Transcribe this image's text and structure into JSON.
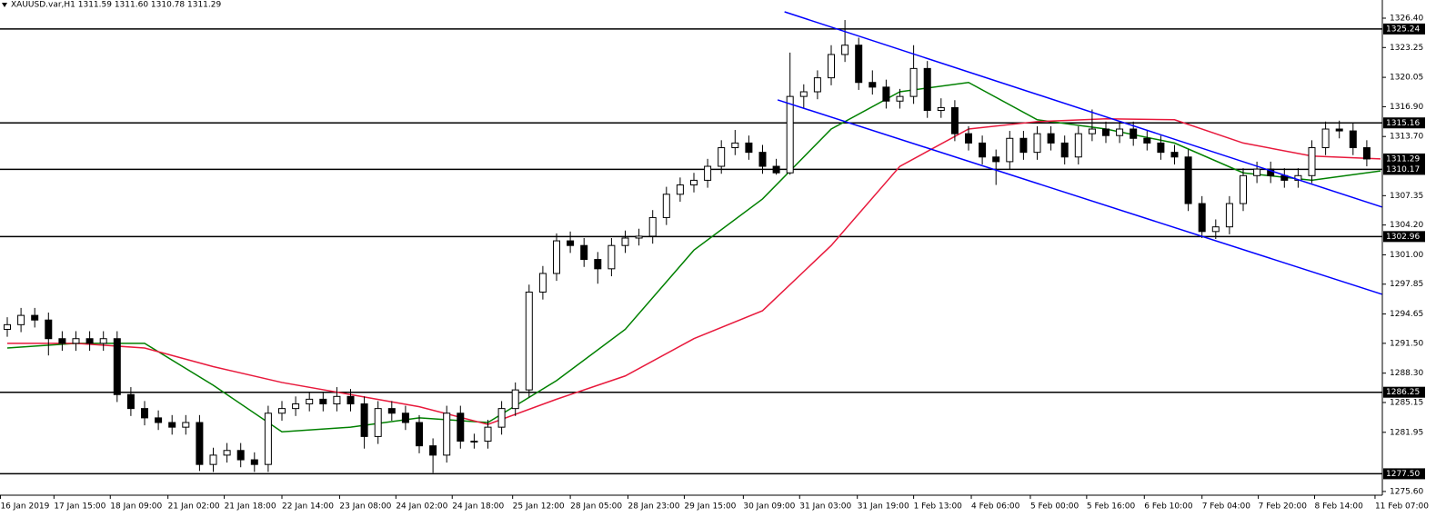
{
  "chart_data": {
    "type": "candlestick",
    "title": "XAUUSD.var,H1  1311.59 1311.60 1310.78 1311.29",
    "open": [
      1293,
      1293.5,
      1294.5,
      1294,
      1292,
      1291.5,
      1292,
      1291.5,
      1292,
      1286,
      1284.5,
      1283.5,
      1283,
      1282.5,
      1283,
      1278.5,
      1279.5,
      1280,
      1279,
      1278.5,
      1284,
      1284.5,
      1285,
      1285.5,
      1285,
      1285.8,
      1285,
      1281.5,
      1284.5,
      1284,
      1283,
      1280.5,
      1279.5,
      1284,
      1281,
      1281,
      1282.5,
      1284.5,
      1286.5,
      1297,
      1299,
      1302.5,
      1302,
      1300.5,
      1299.5,
      1302,
      1302.8,
      1303,
      1305,
      1307.5,
      1308.5,
      1309,
      1310.5,
      1312.5,
      1313,
      1312,
      1310.5,
      1309.8,
      1318,
      1318.5,
      1320,
      1322.5,
      1323.5,
      1319.5,
      1319,
      1317.5,
      1318,
      1321,
      1316.5,
      1316.8,
      1314,
      1313,
      1311.5,
      1311,
      1313.5,
      1312,
      1314,
      1313,
      1311.5,
      1314,
      1314.5,
      1313.8,
      1314.5,
      1313.5,
      1313,
      1312,
      1311.5,
      1306.5,
      1303.5,
      1304,
      1306.5,
      1309.5,
      1310.2,
      1309.5,
      1309,
      1309.5,
      1312.5,
      1314.5,
      1314.3,
      1312.5
    ],
    "high": [
      1294.3,
      1295.3,
      1295.3,
      1294.8,
      1292.8,
      1292.8,
      1292.8,
      1292.8,
      1292.8,
      1286.8,
      1285.3,
      1284.3,
      1283.8,
      1283.8,
      1283.8,
      1280.3,
      1280.8,
      1280.8,
      1279.8,
      1284.8,
      1285.3,
      1285.8,
      1286.3,
      1286.3,
      1286.8,
      1286.6,
      1285.8,
      1285.3,
      1285.3,
      1284.8,
      1283.8,
      1281.3,
      1284.8,
      1284.8,
      1281.8,
      1283.3,
      1285.3,
      1287.3,
      1297.8,
      1299.8,
      1303.3,
      1303.5,
      1302.8,
      1301.3,
      1302.8,
      1303.6,
      1303.8,
      1305.8,
      1308.3,
      1309.3,
      1309.8,
      1311.3,
      1313.3,
      1314.4,
      1313.8,
      1312.8,
      1311.3,
      1322.7,
      1319.3,
      1320.8,
      1323.5,
      1326.2,
      1324.3,
      1320.8,
      1319.8,
      1318.8,
      1323.5,
      1321.8,
      1317.8,
      1317.6,
      1314.8,
      1313.8,
      1312.3,
      1314.3,
      1314.3,
      1314.8,
      1314.8,
      1313.8,
      1314.8,
      1316.6,
      1315.3,
      1315.3,
      1315.3,
      1314.3,
      1313.8,
      1312.8,
      1312.3,
      1307.3,
      1304.8,
      1307.3,
      1310.3,
      1311,
      1311,
      1310.3,
      1310.3,
      1313.3,
      1315.3,
      1315.4,
      1315.1,
      1313.3
    ],
    "low": [
      1292.2,
      1292.7,
      1293.2,
      1290.2,
      1290.7,
      1290.7,
      1290.7,
      1290.7,
      1285.2,
      1283.7,
      1282.7,
      1282.2,
      1281.7,
      1281.7,
      1277.8,
      1277.7,
      1278.7,
      1278.2,
      1277.7,
      1277.7,
      1283.2,
      1283.7,
      1284.2,
      1284.2,
      1284.2,
      1284.2,
      1280.2,
      1280.7,
      1283.2,
      1282.2,
      1279.7,
      1277.6,
      1278.7,
      1280.2,
      1280.2,
      1280.2,
      1281.7,
      1283.7,
      1285.7,
      1296.2,
      1298.2,
      1301.2,
      1299.7,
      1297.9,
      1298.7,
      1301.2,
      1302,
      1302.2,
      1304.2,
      1306.7,
      1307.7,
      1308.2,
      1309.7,
      1311.7,
      1311.2,
      1309.7,
      1309.6,
      1309.6,
      1316.7,
      1317.7,
      1319.2,
      1321.7,
      1318.7,
      1318.2,
      1316.7,
      1316.7,
      1317.2,
      1315.7,
      1315.7,
      1313.2,
      1312.2,
      1310.7,
      1308.5,
      1310.2,
      1311.2,
      1311.2,
      1312.2,
      1310.7,
      1310.7,
      1313.2,
      1313,
      1313,
      1312.7,
      1312.2,
      1311.2,
      1310.7,
      1305.7,
      1302.8,
      1302.7,
      1303.2,
      1305.7,
      1308.7,
      1308.7,
      1308.2,
      1308.2,
      1308.7,
      1311.7,
      1313.5,
      1311.7,
      1310.5
    ],
    "close": [
      1293.5,
      1294.5,
      1294,
      1292,
      1291.5,
      1292,
      1291.5,
      1292,
      1286,
      1284.5,
      1283.5,
      1283,
      1282.5,
      1283,
      1278.5,
      1279.5,
      1280,
      1279,
      1278.5,
      1284,
      1284.5,
      1285,
      1285.5,
      1285,
      1285.8,
      1285,
      1281.5,
      1284.5,
      1284,
      1283,
      1280.5,
      1279.5,
      1284,
      1281,
      1281,
      1282.5,
      1284.5,
      1286.5,
      1297,
      1299,
      1302.5,
      1302,
      1300.5,
      1299.5,
      1302,
      1302.8,
      1303,
      1305,
      1307.5,
      1308.5,
      1309,
      1310.5,
      1312.5,
      1313,
      1312,
      1310.5,
      1309.8,
      1318,
      1318.5,
      1320,
      1322.5,
      1323.5,
      1319.5,
      1319,
      1317.5,
      1318,
      1321,
      1316.5,
      1316.8,
      1314,
      1313,
      1311.5,
      1311,
      1313.5,
      1312,
      1314,
      1313,
      1311.5,
      1314,
      1314.5,
      1313.8,
      1314.5,
      1313.5,
      1313,
      1312,
      1311.5,
      1306.5,
      1303.5,
      1304,
      1306.5,
      1309.5,
      1310.2,
      1309.5,
      1309,
      1309.5,
      1312.5,
      1314.5,
      1314.3,
      1312.5,
      1311.29
    ],
    "color_up": "#ffffff",
    "color_down": "#000000",
    "ylim": [
      1275.2,
      1328.35
    ],
    "yticks": [
      {
        "value": 1326.4,
        "label": "1326.40"
      },
      1323.25,
      1320.05,
      {
        "value": 1316.9,
        "label": "1316.90"
      },
      {
        "value": 1313.7,
        "label": "1313.70"
      },
      1307.35,
      {
        "value": 1304.2,
        "label": "1304.20"
      },
      {
        "value": 1301,
        "label": "1301.00"
      },
      1297.85,
      1294.65,
      {
        "value": 1291.5,
        "label": "1291.50"
      },
      {
        "value": 1288.3,
        "label": "1288.30"
      },
      1285.15,
      1281.95,
      {
        "value": 1275.6,
        "label": "1275.60"
      }
    ],
    "xticks": [
      {
        "value": -0.5,
        "label": "16 Jan 2019"
      },
      {
        "value": 3.4,
        "label": "17 Jan 15:00"
      },
      {
        "value": 7.5,
        "label": "18 Jan 09:00"
      },
      {
        "value": 11.7,
        "label": "21 Jan 02:00"
      },
      {
        "value": 15.8,
        "label": "21 Jan 18:00"
      },
      {
        "value": 20,
        "label": "22 Jan 14:00"
      },
      {
        "value": 24.2,
        "label": "23 Jan 08:00"
      },
      {
        "value": 28.3,
        "label": "24 Jan 02:00"
      },
      {
        "value": 32.4,
        "label": "24 Jan 18:00"
      },
      {
        "value": 36.8,
        "label": "25 Jan 12:00"
      },
      {
        "value": 41,
        "label": "28 Jan 05:00"
      },
      {
        "value": 45.2,
        "label": "28 Jan 23:00"
      },
      {
        "value": 49.3,
        "label": "29 Jan 15:00"
      },
      {
        "value": 53.6,
        "label": "30 Jan 09:00"
      },
      {
        "value": 57.7,
        "label": "31 Jan 03:00"
      },
      {
        "value": 61.9,
        "label": "31 Jan 19:00"
      },
      {
        "value": 66,
        "label": "1 Feb 13:00"
      },
      {
        "value": 70.2,
        "label": "4 Feb 06:00"
      },
      {
        "value": 74.5,
        "label": "5 Feb 00:00"
      },
      {
        "value": 78.6,
        "label": "5 Feb 16:00"
      },
      {
        "value": 82.8,
        "label": "6 Feb 10:00"
      },
      {
        "value": 87,
        "label": "7 Feb 04:00"
      },
      {
        "value": 91.1,
        "label": "7 Feb 20:00"
      },
      {
        "value": 95.2,
        "label": "8 Feb 14:00"
      },
      {
        "value": 99.6,
        "label": "11 Feb 07:00"
      }
    ],
    "levels": [
      1325.24,
      1315.16,
      1310.17,
      1302.96,
      1286.25,
      {
        "value": 1277.5,
        "label": "1277.50"
      }
    ],
    "level_color": "#000000",
    "last_price": 1311.29,
    "lines": [
      {
        "color": "#008000",
        "x": [
          0,
          5,
          10,
          15,
          20,
          25,
          30,
          35,
          40,
          45,
          50,
          55,
          60,
          65,
          70,
          75,
          80,
          85,
          90,
          95,
          100
        ],
        "values": [
          1291,
          1291.5,
          1291.5,
          1287,
          1282,
          1282.5,
          1283.5,
          1283,
          1287.5,
          1293,
          1301.5,
          1307,
          1314.5,
          1318.5,
          1319.5,
          1315.5,
          1314.5,
          1313,
          1309.8,
          1309,
          1310
        ]
      },
      {
        "color": "#e8193c",
        "x": [
          0,
          5,
          10,
          15,
          20,
          25,
          30,
          35,
          40,
          45,
          50,
          55,
          60,
          65,
          70,
          75,
          80,
          85,
          90,
          95,
          100
        ],
        "values": [
          1291.5,
          1291.5,
          1291,
          1289,
          1287.3,
          1286,
          1284.7,
          1282.8,
          1285.5,
          1288,
          1292,
          1295,
          1302,
          1310.5,
          1314.5,
          1315.3,
          1315.6,
          1315.5,
          1313,
          1311.6,
          1311.3
        ]
      }
    ],
    "trendlines": [
      {
        "color": "#0000ff",
        "x": [
          56.6,
          100.1
        ],
        "values": [
          1327.08,
          1306.13
        ]
      },
      {
        "color": "#0000ff",
        "x": [
          56.1,
          100.1
        ],
        "values": [
          1317.63,
          1296.77
        ]
      }
    ]
  }
}
